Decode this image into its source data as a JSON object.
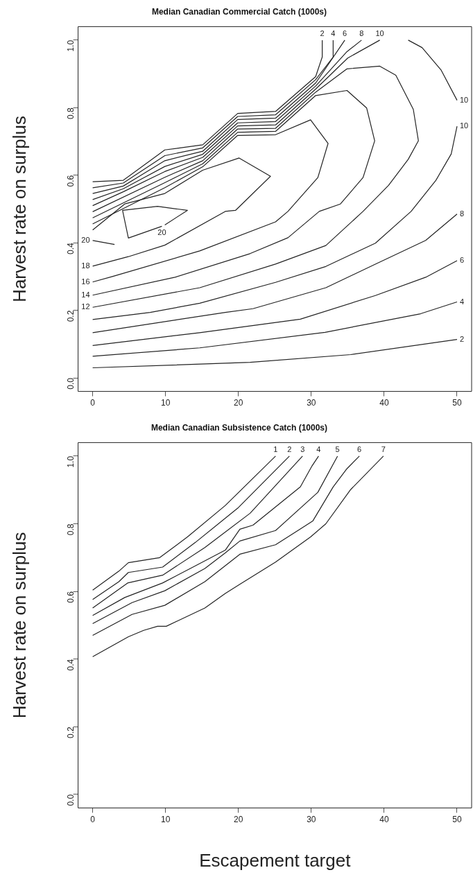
{
  "chart_data": [
    {
      "type": "line",
      "title": "Median Canadian Commercial Catch (1000s)",
      "ylabel": "Harvest rate on surplus",
      "xlim": [
        -2,
        52
      ],
      "ylim": [
        -0.04,
        1.04
      ],
      "xticks": [
        0,
        10,
        20,
        30,
        40,
        50
      ],
      "yticks": [
        {
          "value": 0,
          "label": "0.0"
        },
        {
          "value": 0.2,
          "label": "0.2"
        },
        {
          "value": 0.4,
          "label": "0.4"
        },
        {
          "value": 0.6,
          "label": "0.6"
        },
        {
          "value": 0.8,
          "label": "0.8"
        },
        {
          "value": 1,
          "label": "1.0"
        }
      ],
      "grid": false,
      "legend": false,
      "marker": "none",
      "series": [
        {
          "name": "2",
          "color": "#222222",
          "x": [
            0,
            21.6,
            35.4,
            50,
            null,
            0,
            4.2,
            9.9,
            15.1,
            19.9,
            25.1,
            30.6,
            31.5,
            31.5
          ],
          "values": [
            0.03,
            0.046,
            0.069,
            0.114,
            null,
            0.581,
            0.585,
            0.675,
            0.69,
            0.783,
            0.789,
            0.892,
            0.95,
            1.0
          ]
        },
        {
          "name": "4",
          "color": "#222222",
          "x": [
            0,
            14.7,
            31.9,
            45.0,
            50,
            null,
            0,
            4.2,
            9.9,
            15.1,
            19.9,
            25.1,
            30.6,
            33,
            33
          ],
          "values": [
            0.064,
            0.089,
            0.135,
            0.19,
            0.225,
            null,
            0.563,
            0.577,
            0.658,
            0.681,
            0.774,
            0.779,
            0.883,
            0.95,
            1.0
          ]
        },
        {
          "name": "6",
          "color": "#222222",
          "x": [
            0,
            14.7,
            28.5,
            38.8,
            45.7,
            50,
            null,
            0,
            4.2,
            9.9,
            15.1,
            19.9,
            25.1,
            30.6,
            34.6
          ],
          "values": [
            0.096,
            0.134,
            0.174,
            0.244,
            0.298,
            0.347,
            null,
            0.546,
            0.568,
            0.643,
            0.671,
            0.765,
            0.769,
            0.873,
            1.0
          ]
        },
        {
          "name": "8",
          "color": "#222222",
          "x": [
            0,
            18.2,
            22,
            32,
            38.8,
            45.7,
            50,
            null,
            0,
            4.2,
            9.9,
            15.1,
            19.9,
            25.1,
            30.6,
            34.9,
            36.9
          ],
          "values": [
            0.134,
            0.194,
            0.205,
            0.267,
            0.337,
            0.407,
            0.485,
            null,
            0.528,
            0.56,
            0.626,
            0.662,
            0.755,
            0.759,
            0.864,
            0.966,
            1.0
          ]
        },
        {
          "name": "10",
          "color": "#222222",
          "x": [
            0,
            7.9,
            14.7,
            25.1,
            32,
            38.8,
            43.7,
            47.1,
            49.2,
            50,
            null,
            0,
            4.2,
            9.9,
            15.1,
            19.9,
            25.1,
            30.6,
            35,
            39.4,
            null,
            43.3,
            45.2,
            47.8,
            50
          ],
          "values": [
            0.173,
            0.194,
            0.221,
            0.283,
            0.33,
            0.399,
            0.493,
            0.585,
            0.663,
            0.745,
            null,
            0.51,
            0.551,
            0.611,
            0.653,
            0.746,
            0.749,
            0.855,
            0.947,
            1.0,
            null,
            1.0,
            0.978,
            0.912,
            0.822
          ]
        },
        {
          "name": "12",
          "color": "#222222",
          "x": [
            0,
            9.9,
            15.1,
            19.9,
            25.1,
            30.6,
            34.9,
            39.4,
            41.6,
            44,
            44.7,
            43.3,
            40.6,
            37.1,
            32,
            25.1,
            14.7,
            0
          ],
          "values": [
            0.492,
            0.594,
            0.643,
            0.737,
            0.739,
            0.846,
            0.915,
            0.923,
            0.896,
            0.795,
            0.702,
            0.647,
            0.57,
            0.493,
            0.392,
            0.337,
            0.267,
            0.209
          ]
        },
        {
          "name": "14",
          "color": "#222222",
          "x": [
            0,
            9.9,
            15.1,
            19.9,
            25.1,
            30.6,
            34.9,
            37.6,
            38.7,
            37.1,
            34,
            31.1,
            26.8,
            21.6,
            11.3,
            0
          ],
          "values": [
            0.474,
            0.578,
            0.634,
            0.727,
            0.73,
            0.836,
            0.851,
            0.799,
            0.702,
            0.593,
            0.515,
            0.493,
            0.415,
            0.368,
            0.298,
            0.245
          ]
        },
        {
          "name": "16",
          "color": "#222222",
          "x": [
            0,
            9.9,
            15.1,
            19.9,
            25.1,
            29.9,
            32.3,
            30.9,
            26.8,
            25.1,
            14.7,
            2.7,
            0
          ],
          "values": [
            0.456,
            0.563,
            0.625,
            0.718,
            0.72,
            0.764,
            0.694,
            0.593,
            0.493,
            0.462,
            0.376,
            0.3,
            0.284
          ]
        },
        {
          "name": "18",
          "color": "#222222",
          "x": [
            0,
            4.4,
            9.9,
            15.1,
            20.1,
            24.4,
            19.6,
            18.2,
            9.9,
            4.9,
            0
          ],
          "values": [
            0.438,
            0.515,
            0.546,
            0.615,
            0.651,
            0.597,
            0.496,
            0.493,
            0.393,
            0.359,
            0.331
          ]
        },
        {
          "name": "20",
          "color": "#222222",
          "x": [
            9.9,
            13,
            8.9,
            4.1,
            4.9,
            9.5
          ],
          "values": [
            0.453,
            0.496,
            0.508,
            0.496,
            0.414,
            0.449
          ]
        },
        {
          "name": "20",
          "color": "#222222",
          "x": [
            3,
            0
          ],
          "values": [
            0.395,
            0.407
          ]
        }
      ]
    },
    {
      "type": "line",
      "title": "Median Canadian Subsistence Catch (1000s)",
      "xlabel": "Escapement target",
      "ylabel": "Harvest rate on surplus",
      "xlim": [
        -2,
        52
      ],
      "ylim": [
        -0.04,
        1.04
      ],
      "xticks": [
        0,
        10,
        20,
        30,
        40,
        50
      ],
      "yticks": [
        {
          "value": 0,
          "label": "0.0"
        },
        {
          "value": 0.2,
          "label": "0.2"
        },
        {
          "value": 0.4,
          "label": "0.4"
        },
        {
          "value": 0.6,
          "label": "0.6"
        },
        {
          "value": 0.8,
          "label": "0.8"
        },
        {
          "value": 1,
          "label": "1.0"
        }
      ],
      "grid": false,
      "legend": false,
      "marker": "none",
      "series": [
        {
          "name": "1",
          "color": "#222222",
          "x": [
            0,
            3.6,
            4.9,
            9.2,
            13,
            18.2,
            25.1
          ],
          "values": [
            0.604,
            0.66,
            0.685,
            0.7,
            0.761,
            0.854,
            1.0
          ]
        },
        {
          "name": "2",
          "color": "#222222",
          "x": [
            0,
            3.6,
            4.9,
            9.6,
            14.1,
            19.9,
            27
          ],
          "values": [
            0.576,
            0.629,
            0.656,
            0.672,
            0.745,
            0.846,
            1.0
          ]
        },
        {
          "name": "3",
          "color": "#222222",
          "x": [
            0,
            4.8,
            9.6,
            15.4,
            21.6,
            28.8
          ],
          "values": [
            0.551,
            0.625,
            0.648,
            0.73,
            0.831,
            1.0
          ]
        },
        {
          "name": "4",
          "color": "#222222",
          "x": [
            0,
            4.4,
            9.6,
            13.4,
            18.2,
            20.2,
            22,
            28.5,
            30.1,
            31
          ],
          "values": [
            0.529,
            0.582,
            0.625,
            0.668,
            0.722,
            0.784,
            0.796,
            0.909,
            0.971,
            1.0
          ]
        },
        {
          "name": "5",
          "color": "#222222",
          "x": [
            0,
            5.4,
            9.9,
            15.4,
            18.2,
            20.2,
            25.1,
            30.9,
            33.6
          ],
          "values": [
            0.505,
            0.567,
            0.602,
            0.668,
            0.714,
            0.749,
            0.78,
            0.893,
            1.0
          ]
        },
        {
          "name": "6",
          "color": "#222222",
          "x": [
            0,
            5.4,
            9.9,
            15.4,
            20.2,
            25.1,
            30.2,
            33,
            34.9,
            36.6
          ],
          "values": [
            0.47,
            0.532,
            0.559,
            0.629,
            0.71,
            0.738,
            0.808,
            0.909,
            0.963,
            1.0
          ]
        },
        {
          "name": "7",
          "color": "#222222",
          "x": [
            0,
            4.9,
            7,
            8.9,
            10.1,
            15.4,
            18.2,
            20.2,
            25.1,
            29.9,
            32,
            35.4,
            39.9
          ],
          "values": [
            0.407,
            0.466,
            0.485,
            0.497,
            0.497,
            0.551,
            0.594,
            0.621,
            0.687,
            0.761,
            0.8,
            0.901,
            1.0
          ]
        }
      ]
    }
  ]
}
